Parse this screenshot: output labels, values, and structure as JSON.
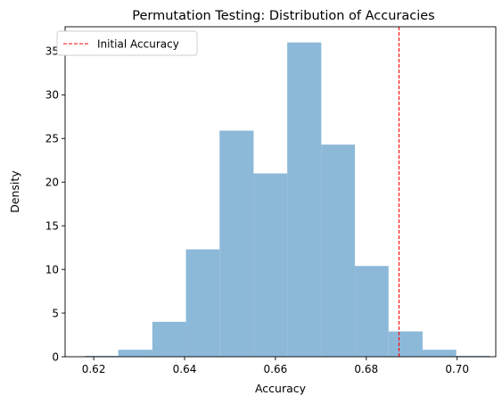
{
  "chart_data": {
    "type": "bar",
    "title": "Permutation Testing: Distribution of Accuracies",
    "xlabel": "Accuracy",
    "ylabel": "Density",
    "xlim": [
      0.6137,
      0.7085
    ],
    "ylim": [
      0,
      37.8
    ],
    "x_ticks": [
      0.62,
      0.64,
      0.66,
      0.68,
      0.7
    ],
    "x_tick_labels": [
      "0.62",
      "0.64",
      "0.66",
      "0.68",
      "0.70"
    ],
    "y_ticks": [
      0,
      5,
      10,
      15,
      20,
      25,
      30,
      35
    ],
    "y_tick_labels": [
      "0",
      "5",
      "10",
      "15",
      "20",
      "25",
      "30",
      "35"
    ],
    "bins": [
      {
        "x0": 0.618,
        "x1": 0.6254,
        "value": 0.1
      },
      {
        "x0": 0.6254,
        "x1": 0.6329,
        "value": 0.8
      },
      {
        "x0": 0.6329,
        "x1": 0.6403,
        "value": 4.0
      },
      {
        "x0": 0.6403,
        "x1": 0.6477,
        "value": 12.3
      },
      {
        "x0": 0.6477,
        "x1": 0.6552,
        "value": 25.9
      },
      {
        "x0": 0.6552,
        "x1": 0.6626,
        "value": 21.0
      },
      {
        "x0": 0.6626,
        "x1": 0.6701,
        "value": 36.0
      },
      {
        "x0": 0.6701,
        "x1": 0.6775,
        "value": 24.3
      },
      {
        "x0": 0.6775,
        "x1": 0.6849,
        "value": 10.4
      },
      {
        "x0": 0.6849,
        "x1": 0.6924,
        "value": 2.9
      },
      {
        "x0": 0.6924,
        "x1": 0.6998,
        "value": 0.8
      },
      {
        "x0": 0.6998,
        "x1": 0.7072,
        "value": 0.1
      }
    ],
    "bar_color": "#8db9d9",
    "reference_line": {
      "x": 0.6872,
      "label": "Initial Accuracy",
      "color": "#ff0000",
      "style": "dashed"
    },
    "legend": {
      "position": "top-left",
      "entries": [
        "Initial Accuracy"
      ]
    },
    "grid": false
  }
}
